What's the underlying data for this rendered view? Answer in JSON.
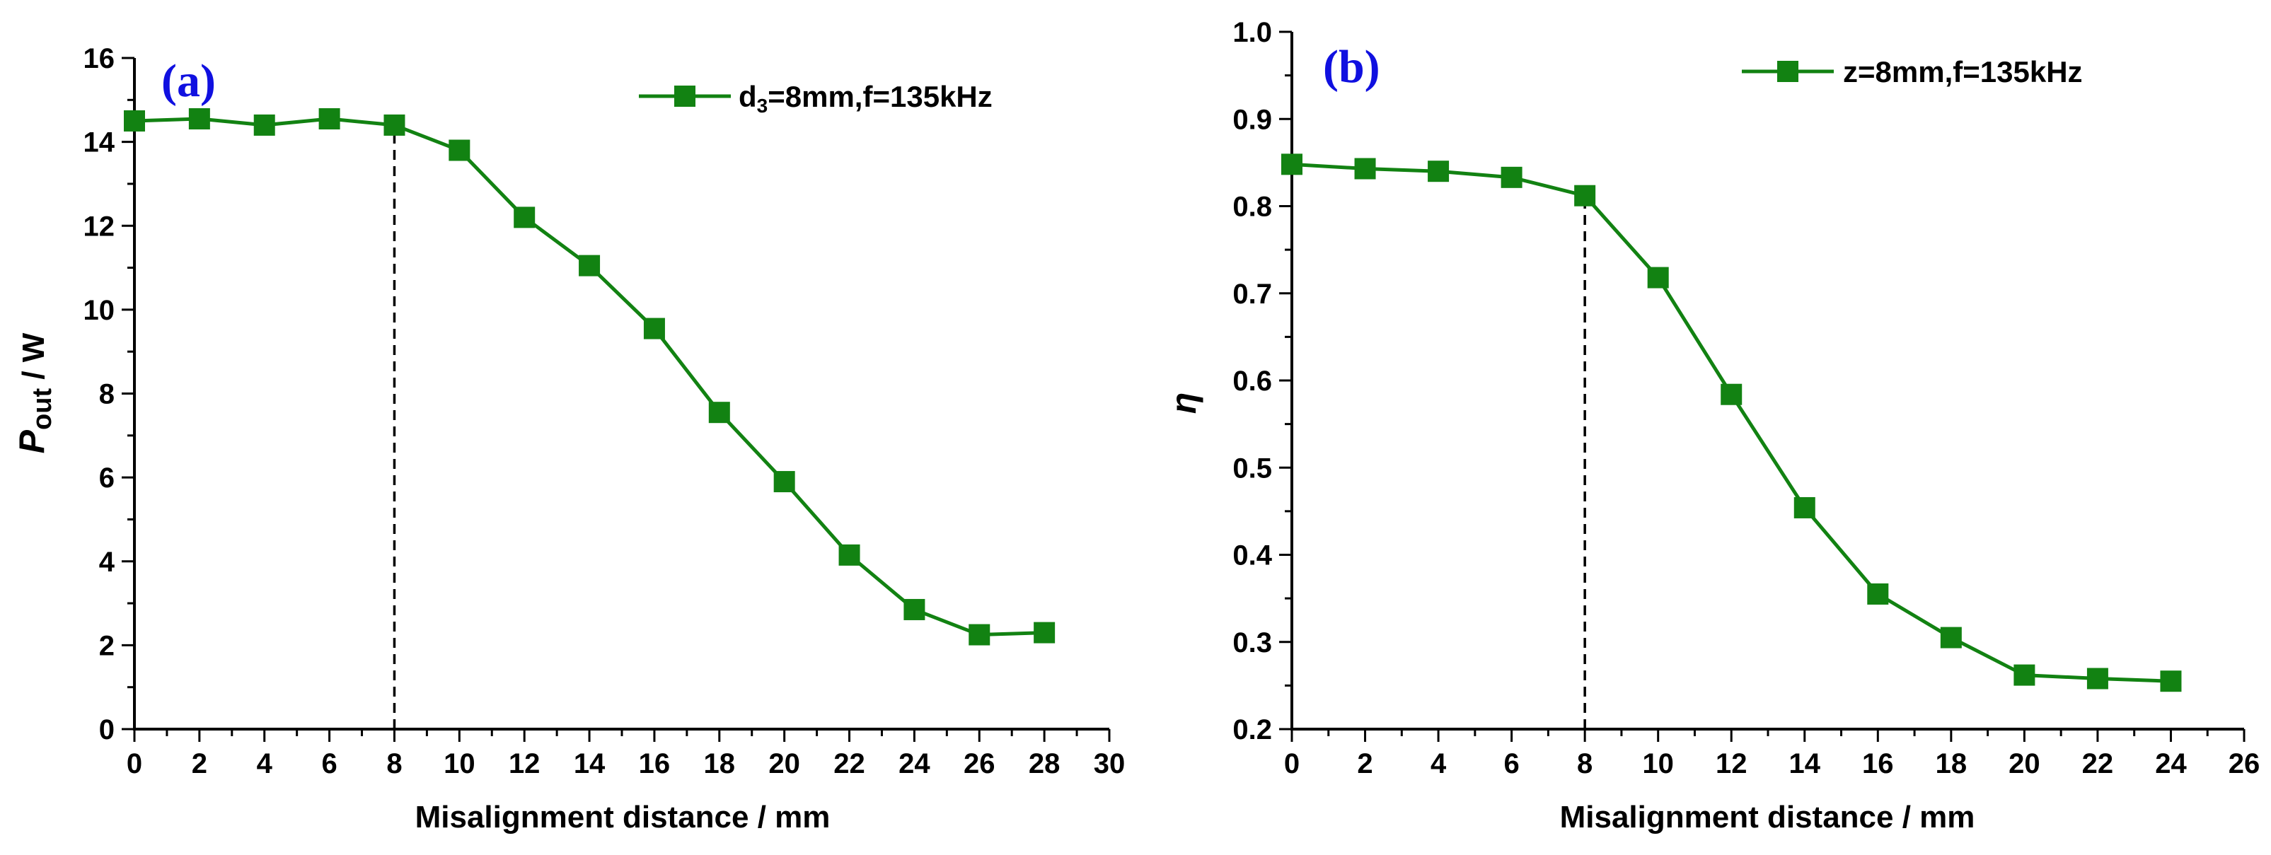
{
  "colors": {
    "series": "#128212",
    "axis": "#000000",
    "panel_label": "#1010e0",
    "marker_line": "#000000"
  },
  "chart_data": [
    {
      "type": "line",
      "panel_label": "(a)",
      "title": "",
      "xlabel": "Misalignment distance / mm",
      "ylabel_main": "P",
      "ylabel_sub": "out",
      "ylabel_suffix": " / W",
      "xlim": [
        0,
        30
      ],
      "ylim": [
        0,
        16
      ],
      "x_ticks": [
        "0",
        "2",
        "4",
        "6",
        "8",
        "10",
        "12",
        "14",
        "16",
        "18",
        "20",
        "22",
        "24",
        "26",
        "28",
        "30"
      ],
      "y_ticks": [
        "0",
        "2",
        "4",
        "6",
        "8",
        "10",
        "12",
        "14",
        "16"
      ],
      "legend_position": "top-right",
      "series": [
        {
          "name": "d3=8mm,f=135kHz",
          "legend_pre": "d",
          "legend_sub": "3",
          "legend_post": "=8mm,f=135kHz",
          "x": [
            0,
            2,
            4,
            6,
            8,
            10,
            12,
            14,
            16,
            18,
            20,
            22,
            24,
            26,
            28
          ],
          "y": [
            14.5,
            14.55,
            14.4,
            14.55,
            14.4,
            13.8,
            12.2,
            11.05,
            9.55,
            7.55,
            5.9,
            4.15,
            2.85,
            2.25,
            2.3
          ]
        }
      ],
      "reference_line_x": 8
    },
    {
      "type": "line",
      "panel_label": "(b)",
      "title": "",
      "xlabel": "Misalignment distance / mm",
      "ylabel_main": "η",
      "ylabel_sub": "",
      "ylabel_suffix": "",
      "xlim": [
        0,
        26
      ],
      "ylim": [
        0.2,
        1.0
      ],
      "x_ticks": [
        "0",
        "2",
        "4",
        "6",
        "8",
        "10",
        "12",
        "14",
        "16",
        "18",
        "20",
        "22",
        "24",
        "26"
      ],
      "y_ticks": [
        "0.2",
        "0.3",
        "0.4",
        "0.5",
        "0.6",
        "0.7",
        "0.8",
        "0.9",
        "1.0"
      ],
      "legend_position": "top-right",
      "series": [
        {
          "name": "z=8mm,f=135kHz",
          "legend_pre": "z=8mm,f=135kHz",
          "legend_sub": "",
          "legend_post": "",
          "x": [
            0,
            2,
            4,
            6,
            8,
            10,
            12,
            14,
            16,
            18,
            20,
            22,
            24
          ],
          "y": [
            0.848,
            0.843,
            0.84,
            0.833,
            0.812,
            0.718,
            0.584,
            0.454,
            0.355,
            0.305,
            0.262,
            0.258,
            0.255
          ]
        }
      ],
      "reference_line_x": 8
    }
  ]
}
